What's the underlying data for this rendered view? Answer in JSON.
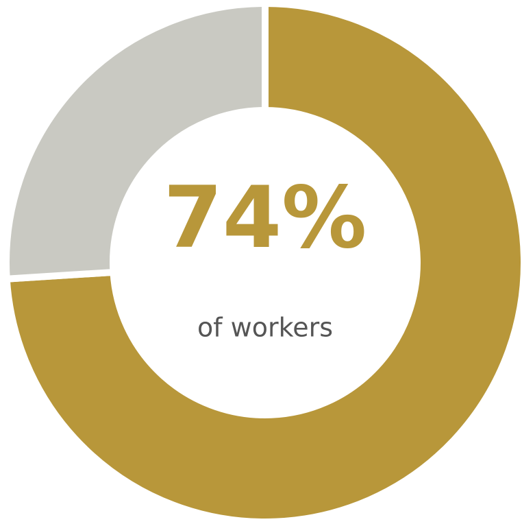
{
  "chart_data": {
    "type": "donut",
    "categories": [
      null,
      null
    ],
    "values": [
      74,
      26
    ],
    "value_labels": [
      "74%",
      null
    ],
    "colors": [
      "#b8973a",
      "#c9c9c2"
    ],
    "subtitle": "of workers"
  }
}
